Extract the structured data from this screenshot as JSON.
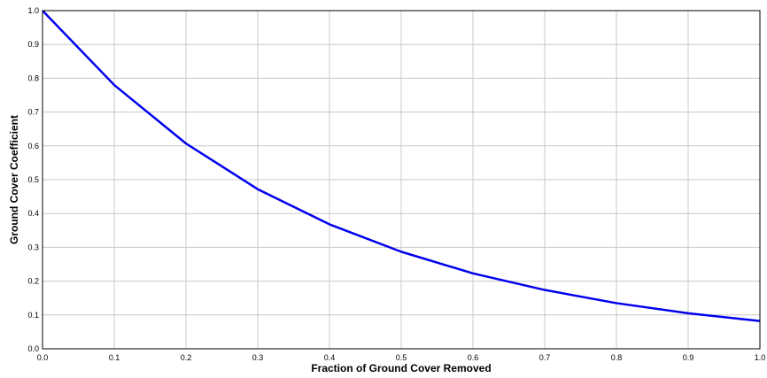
{
  "chart_data": {
    "type": "line",
    "title": "",
    "xlabel": "Fraction of Ground Cover Removed",
    "ylabel": "Ground Cover Coefficient",
    "xlim": [
      0.0,
      1.0
    ],
    "ylim": [
      0.0,
      1.0
    ],
    "grid": true,
    "legend": "none",
    "x_ticks": [
      "0.0",
      "0.1",
      "0.2",
      "0.3",
      "0.4",
      "0.5",
      "0.6",
      "0.7",
      "0.8",
      "0.9",
      "1.0"
    ],
    "y_ticks": [
      "0.0",
      "0.1",
      "0.2",
      "0.3",
      "0.4",
      "0.5",
      "0.6",
      "0.7",
      "0.8",
      "0.9",
      "1.0"
    ],
    "x": [
      0.0,
      0.1,
      0.2,
      0.3,
      0.4,
      0.5,
      0.6,
      0.7,
      0.8,
      0.9,
      1.0
    ],
    "series": [
      {
        "values": [
          1.0,
          0.78,
          0.607,
          0.472,
          0.368,
          0.287,
          0.223,
          0.174,
          0.135,
          0.105,
          0.082
        ],
        "color": "#0000ee"
      }
    ],
    "colors": {
      "grid": "#c8c8c8",
      "frame": "#000000",
      "line": "#0000ee"
    }
  }
}
